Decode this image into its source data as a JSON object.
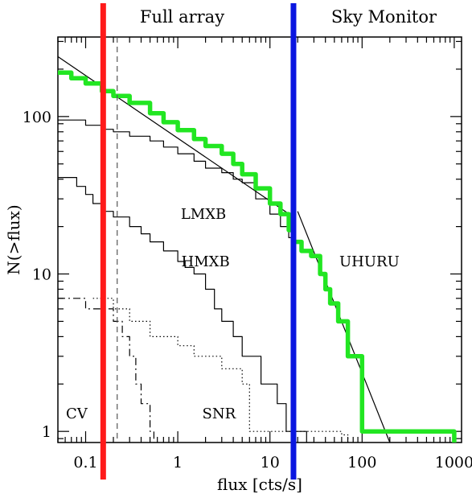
{
  "chart_data": {
    "type": "line",
    "xscale": "log",
    "yscale": "log",
    "xlim": [
      0.05,
      1200
    ],
    "ylim": [
      0.85,
      320
    ],
    "xlabel": "flux  [cts/s]",
    "ylabel": "N(>flux)",
    "x_ticks": [
      {
        "value": 0.1,
        "label": "0.1"
      },
      {
        "value": 1,
        "label": "1"
      },
      {
        "value": 10,
        "label": "10"
      },
      {
        "value": 100,
        "label": "100"
      },
      {
        "value": 1000,
        "label": "1000"
      }
    ],
    "y_ticks": [
      {
        "value": 1,
        "label": "1"
      },
      {
        "value": 10,
        "label": "10"
      },
      {
        "value": 100,
        "label": "100"
      }
    ],
    "regions": [
      {
        "label": "Full array",
        "x_from": 0.05,
        "x_to": 18
      },
      {
        "label": "Sky Monitor",
        "x_from": 18,
        "x_to": 1200
      }
    ],
    "vertical_lines": [
      {
        "name": "full-array-limit",
        "x": 0.155,
        "color": "#ff1a1a",
        "style": "thick"
      },
      {
        "name": "sky-monitor-limit",
        "x": 18,
        "color": "#0a16e0",
        "style": "thick"
      },
      {
        "name": "cv-limit",
        "x": 0.22,
        "color": "#555555",
        "style": "dashed"
      }
    ],
    "series": [
      {
        "name": "total",
        "color": "#22e622",
        "style": "thick-step",
        "points": [
          [
            0.05,
            190
          ],
          [
            0.07,
            175
          ],
          [
            0.1,
            162
          ],
          [
            0.15,
            145
          ],
          [
            0.2,
            135
          ],
          [
            0.3,
            122
          ],
          [
            0.5,
            105
          ],
          [
            0.7,
            92
          ],
          [
            1,
            82
          ],
          [
            1.5,
            72
          ],
          [
            2,
            65
          ],
          [
            3,
            58
          ],
          [
            4,
            50
          ],
          [
            5,
            43
          ],
          [
            7,
            35
          ],
          [
            10,
            28
          ],
          [
            13,
            24
          ],
          [
            16,
            19
          ],
          [
            18,
            16
          ],
          [
            22,
            14
          ],
          [
            28,
            13
          ],
          [
            35,
            10
          ],
          [
            40,
            8
          ],
          [
            45,
            6.5
          ],
          [
            55,
            5
          ],
          [
            70,
            3
          ],
          [
            100,
            2
          ],
          [
            100,
            1
          ],
          [
            1000,
            1
          ],
          [
            1000,
            0.85
          ]
        ]
      },
      {
        "name": "LMXB",
        "color": "#000000",
        "style": "thin-step",
        "points": [
          [
            0.05,
            95
          ],
          [
            0.1,
            88
          ],
          [
            0.15,
            83
          ],
          [
            0.2,
            80
          ],
          [
            0.3,
            75
          ],
          [
            0.5,
            70
          ],
          [
            0.7,
            64
          ],
          [
            1,
            58
          ],
          [
            1.5,
            52
          ],
          [
            2,
            47
          ],
          [
            3,
            44
          ],
          [
            4,
            40
          ],
          [
            5,
            38
          ],
          [
            7,
            30
          ],
          [
            10,
            24
          ],
          [
            13,
            20
          ],
          [
            16,
            17
          ],
          [
            18,
            16
          ]
        ]
      },
      {
        "name": "HMXB",
        "color": "#000000",
        "style": "thin-step",
        "points": [
          [
            0.05,
            41
          ],
          [
            0.08,
            36
          ],
          [
            0.1,
            32
          ],
          [
            0.12,
            28
          ],
          [
            0.15,
            25
          ],
          [
            0.2,
            23
          ],
          [
            0.3,
            20
          ],
          [
            0.4,
            18
          ],
          [
            0.5,
            16
          ],
          [
            0.7,
            14
          ],
          [
            1,
            12
          ],
          [
            1.2,
            11
          ],
          [
            1.5,
            10
          ],
          [
            2,
            8
          ],
          [
            2.5,
            6
          ],
          [
            3,
            5
          ],
          [
            4,
            4
          ],
          [
            5,
            3
          ],
          [
            7,
            3
          ],
          [
            8,
            2
          ],
          [
            10,
            2
          ],
          [
            12,
            1.5
          ],
          [
            15,
            1
          ],
          [
            20,
            1
          ],
          [
            25,
            0.85
          ]
        ]
      },
      {
        "name": "SNR",
        "color": "#000000",
        "style": "dotted-step",
        "points": [
          [
            0.12,
            7
          ],
          [
            0.2,
            6
          ],
          [
            0.3,
            5
          ],
          [
            0.5,
            4
          ],
          [
            0.8,
            4
          ],
          [
            1,
            3.5
          ],
          [
            1.5,
            3
          ],
          [
            2,
            3
          ],
          [
            3,
            2.5
          ],
          [
            4,
            2.5
          ],
          [
            5,
            2
          ],
          [
            6,
            1
          ],
          [
            20,
            1
          ],
          [
            60,
            0.95
          ],
          [
            70,
            0.85
          ]
        ]
      },
      {
        "name": "CV",
        "color": "#000000",
        "style": "dashed-step",
        "points": [
          [
            0.05,
            7
          ],
          [
            0.08,
            7
          ],
          [
            0.1,
            6
          ],
          [
            0.2,
            5
          ],
          [
            0.25,
            4
          ],
          [
            0.3,
            3
          ],
          [
            0.35,
            2
          ],
          [
            0.4,
            1.5
          ],
          [
            0.5,
            1
          ],
          [
            0.55,
            0.85
          ]
        ]
      },
      {
        "name": "UHURU-fit",
        "color": "#000000",
        "style": "thin-line",
        "points": [
          [
            20,
            25
          ],
          [
            200,
            0.85
          ]
        ]
      },
      {
        "name": "full-array-fit",
        "color": "#000000",
        "style": "thin-line",
        "points": [
          [
            0.05,
            240
          ],
          [
            18,
            23
          ]
        ]
      }
    ],
    "annotations": [
      {
        "text": "LMXB",
        "x": 1.9,
        "y": 24
      },
      {
        "text": "HMXB",
        "x": 2,
        "y": 12
      },
      {
        "text": "UHURU",
        "x": 120,
        "y": 12
      },
      {
        "text": "SNR",
        "x": 2.8,
        "y": 1.3
      },
      {
        "text": "CV",
        "x": 0.08,
        "y": 1.3
      }
    ]
  }
}
